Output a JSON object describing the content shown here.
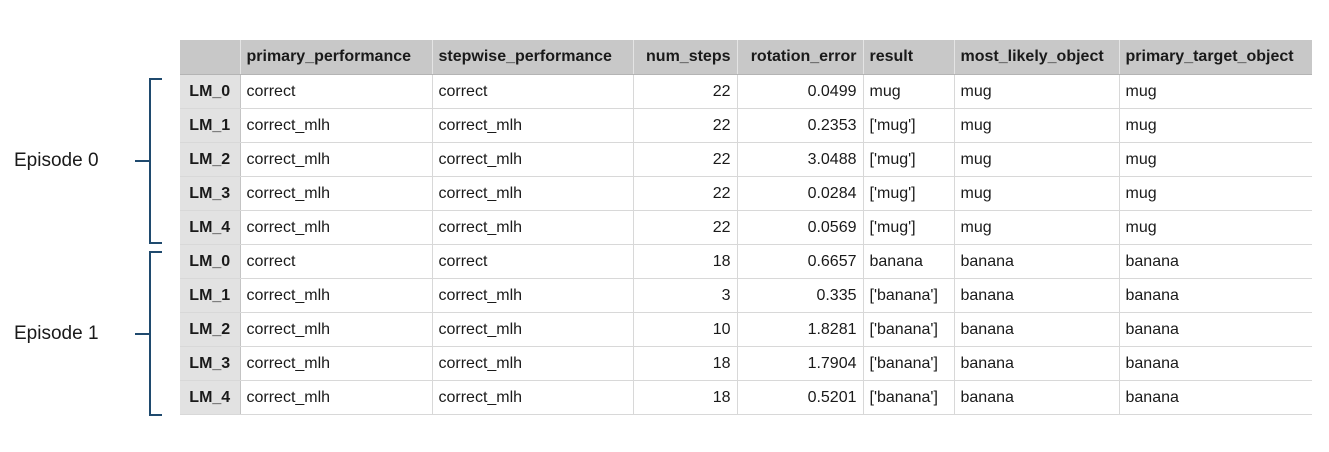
{
  "episodes": [
    {
      "label": "Episode 0"
    },
    {
      "label": "Episode 1"
    }
  ],
  "table": {
    "columns": [
      "",
      "primary_performance",
      "stepwise_performance",
      "num_steps",
      "rotation_error",
      "result",
      "most_likely_object",
      "primary_target_object"
    ],
    "rows": [
      [
        "LM_0",
        "correct",
        "correct",
        "22",
        "0.0499",
        "mug",
        "mug",
        "mug"
      ],
      [
        "LM_1",
        "correct_mlh",
        "correct_mlh",
        "22",
        "0.2353",
        "['mug']",
        "mug",
        "mug"
      ],
      [
        "LM_2",
        "correct_mlh",
        "correct_mlh",
        "22",
        "3.0488",
        "['mug']",
        "mug",
        "mug"
      ],
      [
        "LM_3",
        "correct_mlh",
        "correct_mlh",
        "22",
        "0.0284",
        "['mug']",
        "mug",
        "mug"
      ],
      [
        "LM_4",
        "correct_mlh",
        "correct_mlh",
        "22",
        "0.0569",
        "['mug']",
        "mug",
        "mug"
      ],
      [
        "LM_0",
        "correct",
        "correct",
        "18",
        "0.6657",
        "banana",
        "banana",
        "banana"
      ],
      [
        "LM_1",
        "correct_mlh",
        "correct_mlh",
        "3",
        "0.335",
        "['banana']",
        "banana",
        "banana"
      ],
      [
        "LM_2",
        "correct_mlh",
        "correct_mlh",
        "10",
        "1.8281",
        "['banana']",
        "banana",
        "banana"
      ],
      [
        "LM_3",
        "correct_mlh",
        "correct_mlh",
        "18",
        "1.7904",
        "['banana']",
        "banana",
        "banana"
      ],
      [
        "LM_4",
        "correct_mlh",
        "correct_mlh",
        "18",
        "0.5201",
        "['banana']",
        "banana",
        "banana"
      ]
    ]
  },
  "colors": {
    "bracket": "#1f4a6e",
    "header_bg": "#c8c8c8",
    "row_label_bg": "#e2e2e2"
  }
}
